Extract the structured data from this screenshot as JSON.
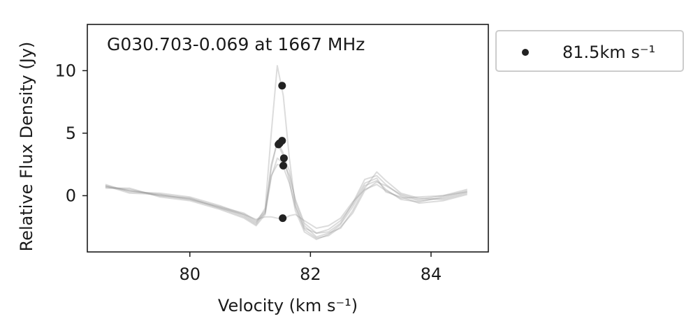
{
  "chart_data": {
    "type": "scatter",
    "title": "G030.703-0.069 at 1667 MHz",
    "xlabel": "Velocity (km s⁻¹)",
    "ylabel": "Relative Flux Density (Jy)",
    "xlim": [
      78.3,
      84.95
    ],
    "ylim": [
      -4.5,
      13.7
    ],
    "xticks": [
      80,
      82,
      84
    ],
    "yticks": [
      0,
      5,
      10
    ],
    "xtick_labels": [
      "80",
      "82",
      "84"
    ],
    "ytick_labels": [
      "0",
      "5",
      "10"
    ],
    "grid": false,
    "legend_position": "outside-top-right",
    "legend": [
      {
        "label": "81.5km s⁻¹",
        "marker": "circle",
        "color": "#222222"
      }
    ],
    "series": [
      {
        "kind": "points",
        "color": "#222222",
        "points": [
          {
            "x": 81.53,
            "y": 8.8
          },
          {
            "x": 81.53,
            "y": 4.4
          },
          {
            "x": 81.49,
            "y": 4.2
          },
          {
            "x": 81.47,
            "y": 4.1
          },
          {
            "x": 81.56,
            "y": 3.0
          },
          {
            "x": 81.55,
            "y": 2.4
          },
          {
            "x": 81.54,
            "y": -1.8
          }
        ]
      },
      {
        "kind": "spectra",
        "color": "#9a9a9a",
        "x": [
          78.6,
          79.0,
          79.5,
          80.0,
          80.5,
          80.9,
          81.1,
          81.25,
          81.35,
          81.45,
          81.55,
          81.65,
          81.75,
          81.9,
          82.1,
          82.3,
          82.5,
          82.7,
          82.9,
          83.1,
          83.25,
          83.5,
          83.8,
          84.2,
          84.6
        ],
        "spectra": [
          [
            0.8,
            0.4,
            0.1,
            -0.3,
            -0.9,
            -1.6,
            -2.2,
            -1.0,
            5.0,
            10.4,
            8.0,
            3.0,
            -0.8,
            -2.6,
            -3.0,
            -2.9,
            -2.2,
            -0.6,
            1.3,
            1.6,
            0.9,
            0.0,
            -0.4,
            -0.2,
            0.3
          ],
          [
            0.7,
            0.5,
            0.0,
            -0.2,
            -1.0,
            -1.7,
            -2.3,
            -1.3,
            2.5,
            4.2,
            3.2,
            2.0,
            -0.5,
            -2.4,
            -3.3,
            -3.0,
            -2.6,
            -1.2,
            0.6,
            1.9,
            1.2,
            0.2,
            -0.2,
            -0.3,
            0.2
          ],
          [
            0.9,
            0.3,
            0.2,
            -0.1,
            -0.8,
            -1.5,
            -2.1,
            -1.4,
            2.2,
            4.4,
            3.4,
            1.2,
            -1.2,
            -2.9,
            -3.5,
            -3.1,
            -2.3,
            -0.9,
            0.8,
            1.2,
            0.5,
            -0.3,
            -0.5,
            -0.1,
            0.4
          ],
          [
            0.6,
            0.6,
            -0.1,
            -0.4,
            -1.1,
            -1.8,
            -2.4,
            -1.5,
            1.5,
            3.0,
            2.6,
            1.6,
            -0.3,
            -2.2,
            -3.0,
            -2.7,
            -2.0,
            -0.7,
            1.0,
            1.4,
            0.3,
            -0.1,
            -0.6,
            -0.4,
            0.1
          ],
          [
            0.8,
            0.2,
            0.1,
            -0.2,
            -0.9,
            -1.4,
            -2.0,
            -1.2,
            1.6,
            2.5,
            2.3,
            1.0,
            -0.9,
            -2.7,
            -3.4,
            -3.2,
            -2.5,
            -1.4,
            0.4,
            1.1,
            0.8,
            0.1,
            -0.3,
            0.0,
            0.5
          ],
          [
            0.7,
            0.4,
            0.0,
            -0.3,
            -1.0,
            -1.5,
            -1.9,
            -1.7,
            -1.7,
            -1.8,
            -1.9,
            -1.6,
            -1.5,
            -2.0,
            -2.6,
            -2.4,
            -1.8,
            -0.5,
            0.5,
            0.9,
            0.4,
            -0.2,
            -0.1,
            0.0,
            0.3
          ]
        ]
      }
    ]
  }
}
